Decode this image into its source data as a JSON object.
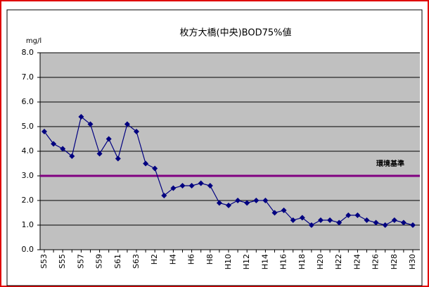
{
  "chart_data": {
    "type": "line",
    "title": "枚方大橋(中央)BOD75%値",
    "y_label": "mg/l",
    "categories": [
      "S53",
      null,
      "S55",
      null,
      "S57",
      null,
      "S59",
      null,
      "S61",
      null,
      "S63",
      null,
      "H2",
      null,
      "H4",
      null,
      "H6",
      null,
      "H8",
      null,
      "H10",
      null,
      "H12",
      null,
      "H14",
      null,
      "H16",
      null,
      "H18",
      null,
      "H20",
      null,
      "H22",
      null,
      "H24",
      null,
      "H26",
      null,
      "H28",
      null,
      "H30"
    ],
    "series": [
      {
        "name": "BOD75%値",
        "color": "#000080",
        "values": [
          4.8,
          4.3,
          4.1,
          3.8,
          5.4,
          5.1,
          3.9,
          4.5,
          3.7,
          5.1,
          4.8,
          3.5,
          3.3,
          2.2,
          2.5,
          2.6,
          2.6,
          2.7,
          2.6,
          1.9,
          1.8,
          2.0,
          1.9,
          2.0,
          2.0,
          1.5,
          1.6,
          1.2,
          1.3,
          1.0,
          1.2,
          1.2,
          1.1,
          1.4,
          1.4,
          1.2,
          1.1,
          1.0,
          1.2,
          1.1,
          1.0
        ]
      }
    ],
    "reference": {
      "label": "環境基準",
      "value": 3.0,
      "color": "#800080"
    },
    "ylim": [
      0,
      8
    ],
    "yticks": [
      {
        "value": 0,
        "label": "0.0"
      },
      {
        "value": 1,
        "label": "1.0"
      },
      {
        "value": 2,
        "label": "2.0"
      },
      {
        "value": 3,
        "label": "3.0"
      },
      {
        "value": 4,
        "label": "4.0"
      },
      {
        "value": 5,
        "label": "5.0"
      },
      {
        "value": 6,
        "label": "6.0"
      },
      {
        "value": 7,
        "label": "7.0"
      },
      {
        "value": 8,
        "label": "8.0"
      }
    ],
    "grid": true,
    "plot_background": "#c0c0c0"
  }
}
